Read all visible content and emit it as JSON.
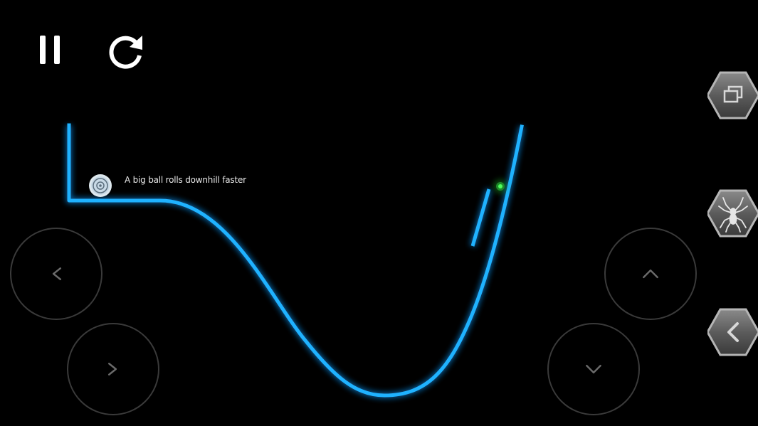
{
  "hud": {
    "pause_icon": "pause-icon",
    "restart_icon": "restart-icon"
  },
  "level": {
    "hint": "A big ball rolls downhill faster",
    "track_color": "#1fb2ff",
    "goal_color": "#22cc33"
  },
  "controls": {
    "left_icon": "chevron-left-icon",
    "right_icon": "chevron-right-icon",
    "up_icon": "chevron-up-icon",
    "down_icon": "chevron-down-icon"
  },
  "side_buttons": [
    {
      "icon": "window-restore-icon"
    },
    {
      "icon": "spider-icon"
    },
    {
      "icon": "back-arrow-icon"
    }
  ]
}
